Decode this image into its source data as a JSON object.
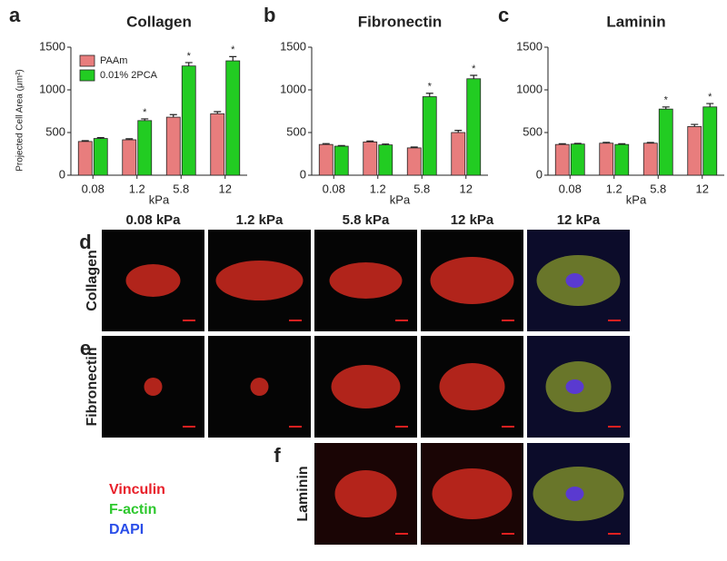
{
  "chart_data": [
    {
      "type": "bar",
      "panel": "a",
      "title": "Collagen",
      "ylabel": "Projected Cell Area (μm²)",
      "xlabel": "kPa",
      "categories": [
        "0.08",
        "1.2",
        "5.8",
        "12"
      ],
      "series": [
        {
          "name": "PAAm",
          "color": "#e87d7d",
          "values": [
            395,
            415,
            680,
            720
          ],
          "errors": [
            10,
            12,
            30,
            25
          ]
        },
        {
          "name": "0.01% 2PCA",
          "color": "#22cc22",
          "values": [
            430,
            640,
            1280,
            1340
          ],
          "errors": [
            10,
            20,
            40,
            50
          ]
        }
      ],
      "annotations": [
        {
          "text": "*",
          "x": "1.2"
        },
        {
          "text": "*",
          "x": "5.8"
        },
        {
          "text": "*",
          "x": "12"
        }
      ],
      "ylim": [
        0,
        1500
      ],
      "yticks": [
        0,
        500,
        1000,
        1500
      ],
      "legend": "upper left"
    },
    {
      "type": "bar",
      "panel": "b",
      "title": "Fibronectin",
      "xlabel": "kPa",
      "categories": [
        "0.08",
        "1.2",
        "5.8",
        "12"
      ],
      "series": [
        {
          "color": "#e87d7d",
          "values": [
            360,
            390,
            320,
            500
          ],
          "errors": [
            10,
            10,
            10,
            25
          ]
        },
        {
          "color": "#22cc22",
          "values": [
            340,
            355,
            920,
            1130
          ],
          "errors": [
            8,
            10,
            40,
            40
          ]
        }
      ],
      "annotations": [
        {
          "text": "*",
          "x": "5.8"
        },
        {
          "text": "*",
          "x": "12"
        }
      ],
      "ylim": [
        0,
        1500
      ],
      "yticks": [
        0,
        500,
        1000,
        1500
      ]
    },
    {
      "type": "bar",
      "panel": "c",
      "title": "Laminin",
      "xlabel": "kPa",
      "categories": [
        "0.08",
        "1.2",
        "5.8",
        "12"
      ],
      "series": [
        {
          "color": "#e87d7d",
          "values": [
            360,
            375,
            375,
            570
          ],
          "errors": [
            8,
            10,
            8,
            25
          ]
        },
        {
          "color": "#22cc22",
          "values": [
            365,
            360,
            775,
            800
          ],
          "errors": [
            8,
            8,
            25,
            40
          ]
        }
      ],
      "annotations": [
        {
          "text": "*",
          "x": "5.8"
        },
        {
          "text": "*",
          "x": "12"
        }
      ],
      "ylim": [
        0,
        1500
      ],
      "yticks": [
        0,
        500,
        1000,
        1500
      ]
    }
  ],
  "images": {
    "columns": [
      "0.08 kPa",
      "1.2 kPa",
      "5.8 kPa",
      "12 kPa",
      "12 kPa"
    ],
    "rows": [
      {
        "letter": "d",
        "label": "Collagen"
      },
      {
        "letter": "e",
        "label": "Fibronectin"
      },
      {
        "letter": "f",
        "label": "Laminin"
      }
    ],
    "legend": [
      {
        "name": "Vinculin",
        "color": "#e8202a"
      },
      {
        "name": "F-actin",
        "color": "#2ec82e"
      },
      {
        "name": "DAPI",
        "color": "#2a4ee8"
      }
    ]
  }
}
